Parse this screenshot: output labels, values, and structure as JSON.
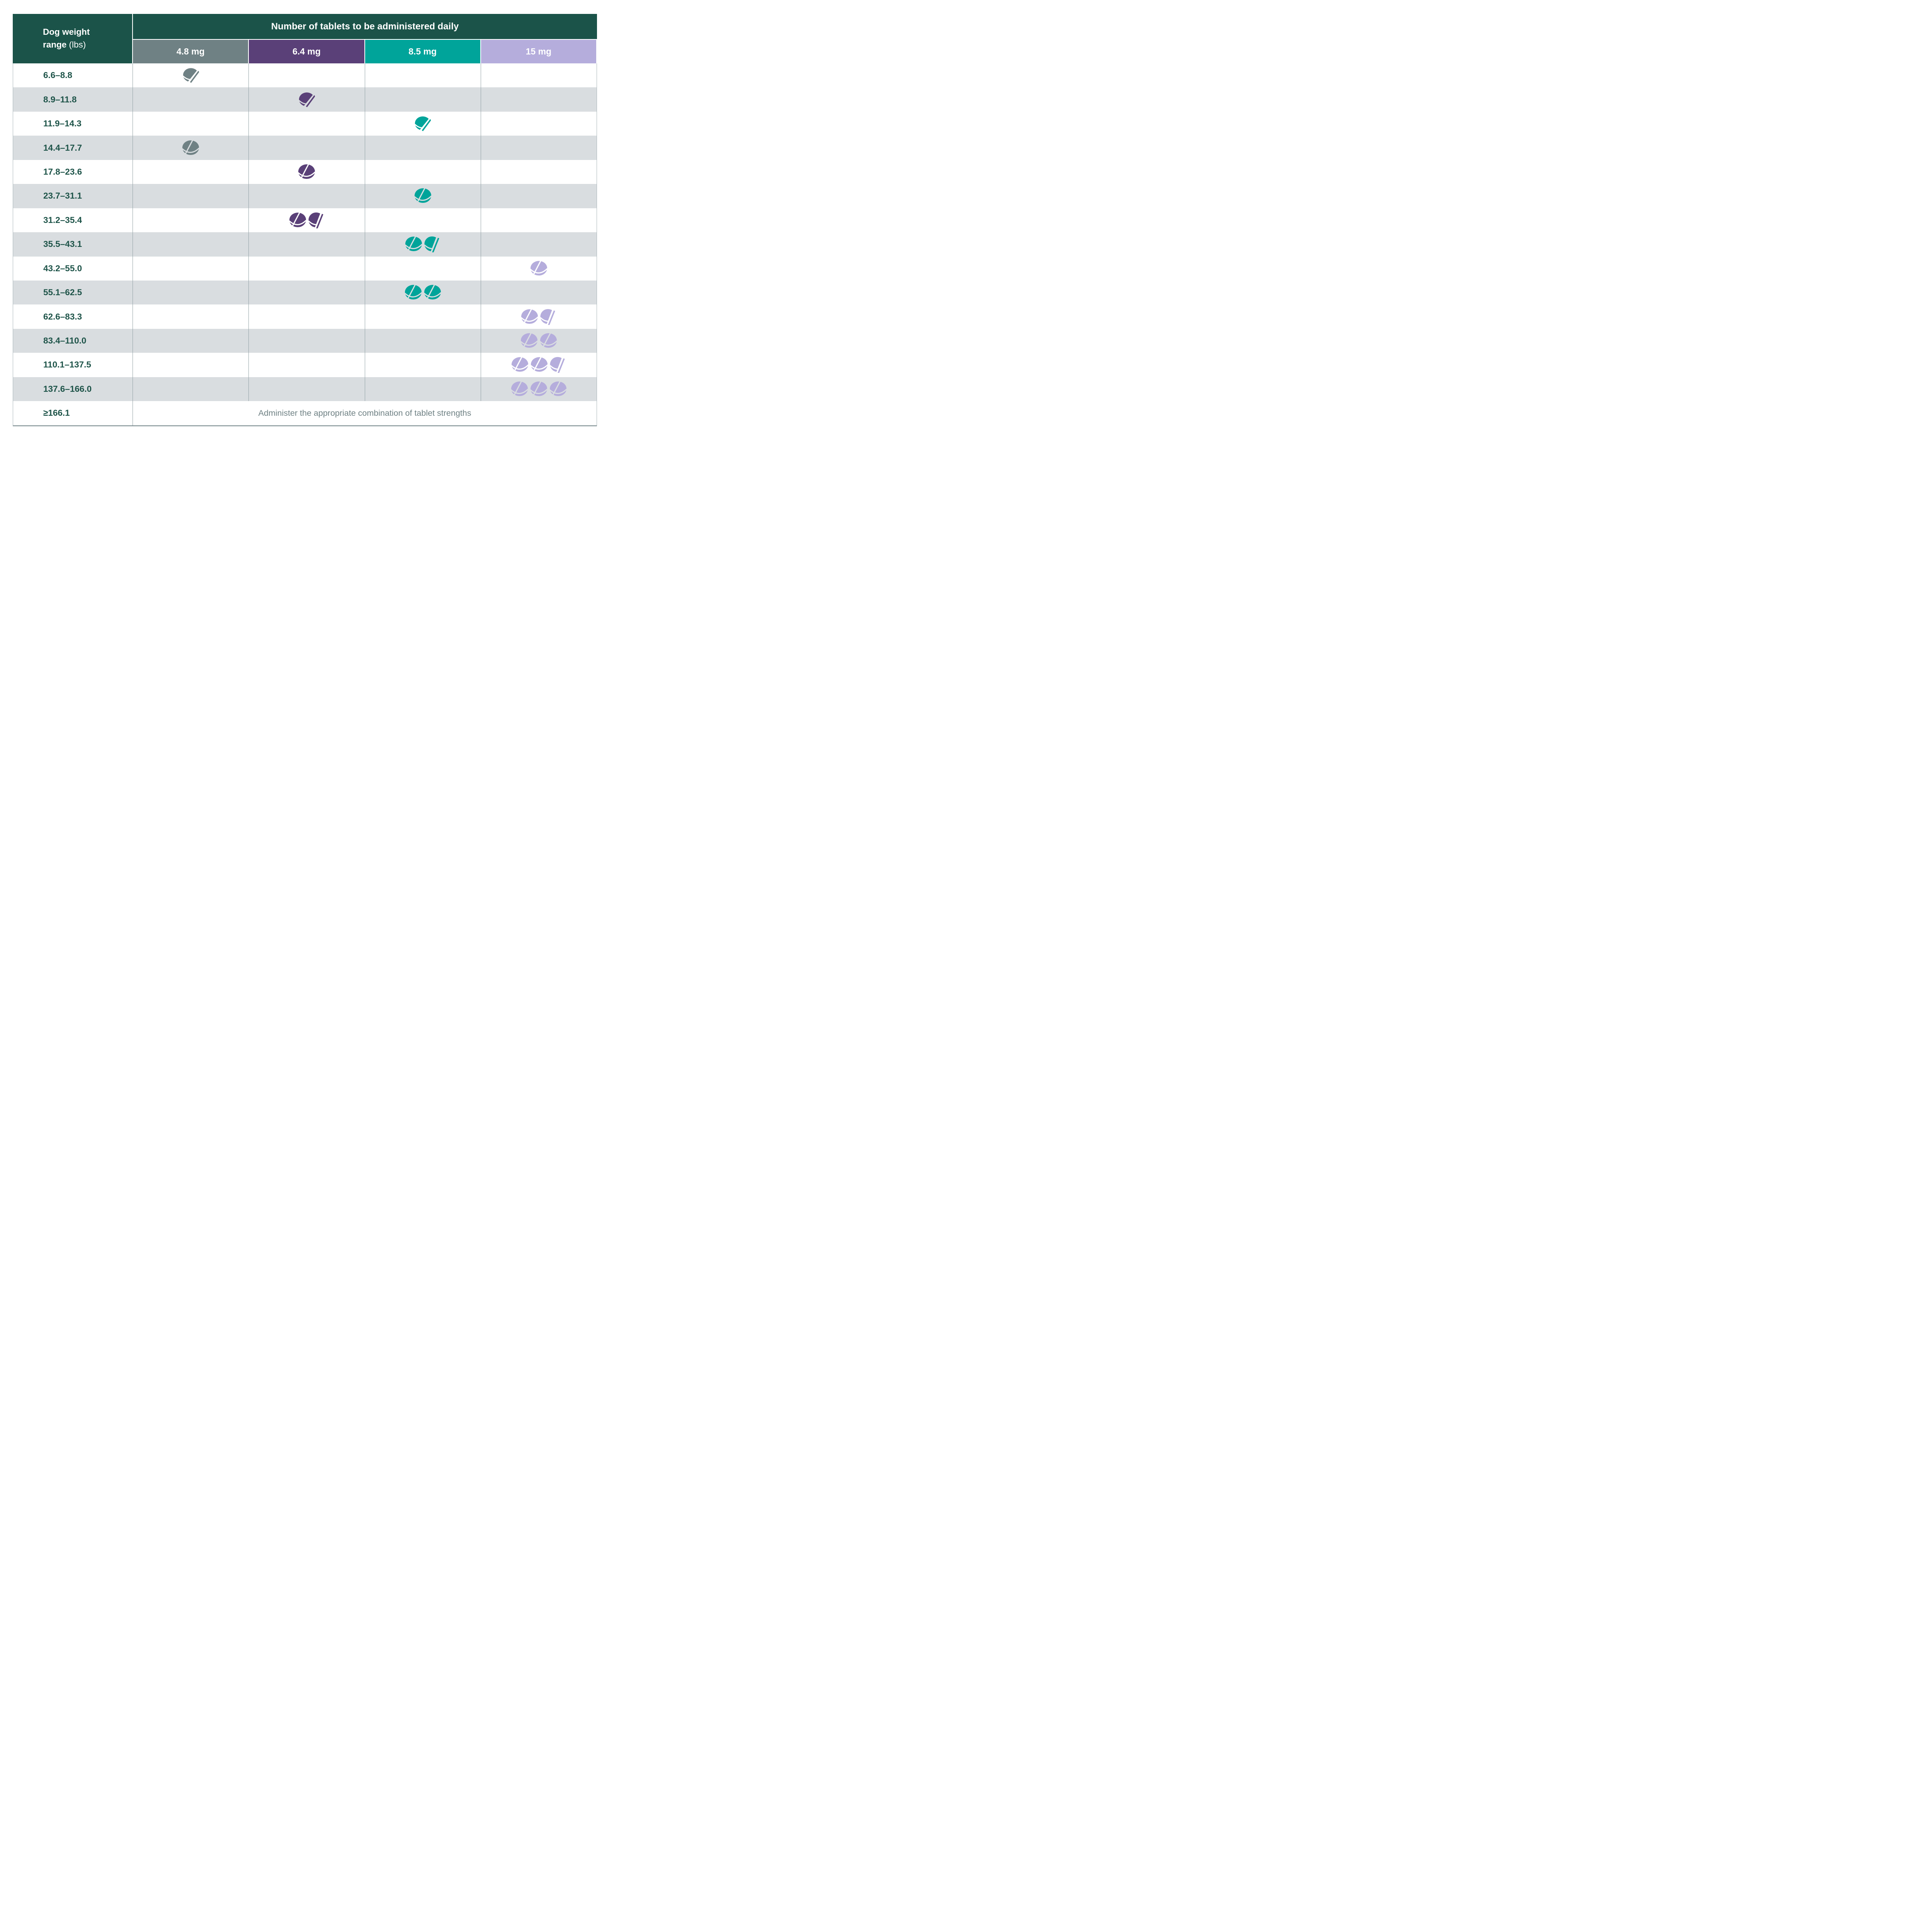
{
  "table": {
    "corner_header": {
      "title_bold": "Dog weight range",
      "title_unit": "(lbs)"
    },
    "main_header": "Number of tablets to be administered daily",
    "strength_columns": [
      {
        "label": "4.8 mg",
        "color": "#6f8184"
      },
      {
        "label": "6.4 mg",
        "color": "#5a4078"
      },
      {
        "label": "8.5 mg",
        "color": "#00a49a"
      },
      {
        "label": "15 mg",
        "color": "#b5addc"
      }
    ],
    "rows": [
      {
        "weight": "6.6–8.8",
        "strength": "4.8 mg",
        "column": 0,
        "tablet_count": 0.5,
        "icons": [
          "half"
        ]
      },
      {
        "weight": "8.9–11.8",
        "strength": "6.4 mg",
        "column": 1,
        "tablet_count": 0.5,
        "icons": [
          "half"
        ]
      },
      {
        "weight": "11.9–14.3",
        "strength": "8.5 mg",
        "column": 2,
        "tablet_count": 0.5,
        "icons": [
          "half"
        ]
      },
      {
        "weight": "14.4–17.7",
        "strength": "4.8 mg",
        "column": 0,
        "tablet_count": 1,
        "icons": [
          "whole"
        ]
      },
      {
        "weight": "17.8–23.6",
        "strength": "6.4 mg",
        "column": 1,
        "tablet_count": 1,
        "icons": [
          "whole"
        ]
      },
      {
        "weight": "23.7–31.1",
        "strength": "8.5 mg",
        "column": 2,
        "tablet_count": 1,
        "icons": [
          "whole"
        ]
      },
      {
        "weight": "31.2–35.4",
        "strength": "6.4 mg",
        "column": 1,
        "tablet_count": 1.5,
        "icons": [
          "whole",
          "half-upright"
        ]
      },
      {
        "weight": "35.5–43.1",
        "strength": "8.5 mg",
        "column": 2,
        "tablet_count": 1.5,
        "icons": [
          "whole",
          "half-upright"
        ]
      },
      {
        "weight": "43.2–55.0",
        "strength": "15 mg",
        "column": 3,
        "tablet_count": 1,
        "icons": [
          "whole"
        ]
      },
      {
        "weight": "55.1–62.5",
        "strength": "8.5 mg",
        "column": 2,
        "tablet_count": 2,
        "icons": [
          "whole",
          "whole"
        ]
      },
      {
        "weight": "62.6–83.3",
        "strength": "15 mg",
        "column": 3,
        "tablet_count": 1.5,
        "icons": [
          "whole",
          "half-upright"
        ]
      },
      {
        "weight": "83.4–110.0",
        "strength": "15 mg",
        "column": 3,
        "tablet_count": 2,
        "icons": [
          "whole",
          "whole"
        ]
      },
      {
        "weight": "110.1–137.5",
        "strength": "15 mg",
        "column": 3,
        "tablet_count": 2.5,
        "icons": [
          "whole",
          "whole",
          "half-upright"
        ]
      },
      {
        "weight": "137.6–166.0",
        "strength": "15 mg",
        "column": 3,
        "tablet_count": 3,
        "icons": [
          "whole",
          "whole",
          "whole"
        ]
      }
    ],
    "footer_row": {
      "weight": "≥166.1",
      "note": "Administer the appropriate combination of tablet strengths"
    },
    "colors": {
      "header_green": "#1b5349",
      "weight_text": "#1d5348",
      "row_alt_bg": "#d9dde0",
      "row_white_bg": "#ffffff",
      "grid_line": "#93a2a6",
      "note_text": "#6f8184",
      "tablet_gray": "#6f8184",
      "tablet_purple": "#5a4078",
      "tablet_teal": "#00a49a",
      "tablet_lavender": "#b5addc"
    }
  },
  "chart_data": {
    "type": "table",
    "title": "Number of tablets to be administered daily",
    "row_label": "Dog weight range (lbs)",
    "columns": [
      "4.8 mg",
      "6.4 mg",
      "8.5 mg",
      "15 mg"
    ],
    "rows": [
      {
        "weight_lbs": "6.6–8.8",
        "tablets_daily": {
          "4.8 mg": 0.5
        }
      },
      {
        "weight_lbs": "8.9–11.8",
        "tablets_daily": {
          "6.4 mg": 0.5
        }
      },
      {
        "weight_lbs": "11.9–14.3",
        "tablets_daily": {
          "8.5 mg": 0.5
        }
      },
      {
        "weight_lbs": "14.4–17.7",
        "tablets_daily": {
          "4.8 mg": 1
        }
      },
      {
        "weight_lbs": "17.8–23.6",
        "tablets_daily": {
          "6.4 mg": 1
        }
      },
      {
        "weight_lbs": "23.7–31.1",
        "tablets_daily": {
          "8.5 mg": 1
        }
      },
      {
        "weight_lbs": "31.2–35.4",
        "tablets_daily": {
          "6.4 mg": 1.5
        }
      },
      {
        "weight_lbs": "35.5–43.1",
        "tablets_daily": {
          "8.5 mg": 1.5
        }
      },
      {
        "weight_lbs": "43.2–55.0",
        "tablets_daily": {
          "15 mg": 1
        }
      },
      {
        "weight_lbs": "55.1–62.5",
        "tablets_daily": {
          "8.5 mg": 2
        }
      },
      {
        "weight_lbs": "62.6–83.3",
        "tablets_daily": {
          "15 mg": 1.5
        }
      },
      {
        "weight_lbs": "83.4–110.0",
        "tablets_daily": {
          "15 mg": 2
        }
      },
      {
        "weight_lbs": "110.1–137.5",
        "tablets_daily": {
          "15 mg": 2.5
        }
      },
      {
        "weight_lbs": "137.6–166.0",
        "tablets_daily": {
          "15 mg": 3
        }
      },
      {
        "weight_lbs": "≥166.1",
        "tablets_daily": null,
        "note": "Administer the appropriate combination of tablet strengths"
      }
    ]
  }
}
